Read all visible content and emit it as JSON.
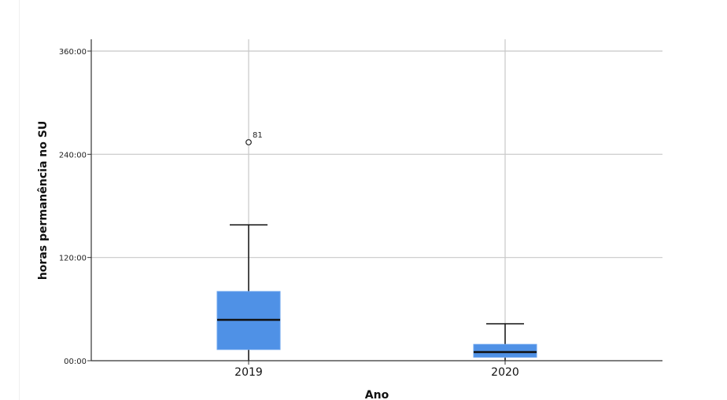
{
  "chart_data": {
    "type": "boxplot",
    "title": "",
    "xlabel": "Ano",
    "ylabel": "horas permanência no SU",
    "categories": [
      "2019",
      "2020"
    ],
    "ylim": [
      0,
      360
    ],
    "yticks": [
      0,
      120,
      240,
      360
    ],
    "ytick_labels": [
      "00:00",
      "120:00",
      "240:00",
      "360:00"
    ],
    "grid": true,
    "box_color": "#4f91e6",
    "boxes": [
      {
        "category": "2019",
        "whisker_low": 0,
        "q1": 13,
        "median": 47.5,
        "q3": 80.5,
        "whisker_high": 158,
        "outliers": [
          {
            "value": 254,
            "label": "81"
          }
        ]
      },
      {
        "category": "2020",
        "whisker_low": 0,
        "q1": 4,
        "median": 10,
        "q3": 19,
        "whisker_high": 43,
        "outliers": []
      }
    ]
  }
}
